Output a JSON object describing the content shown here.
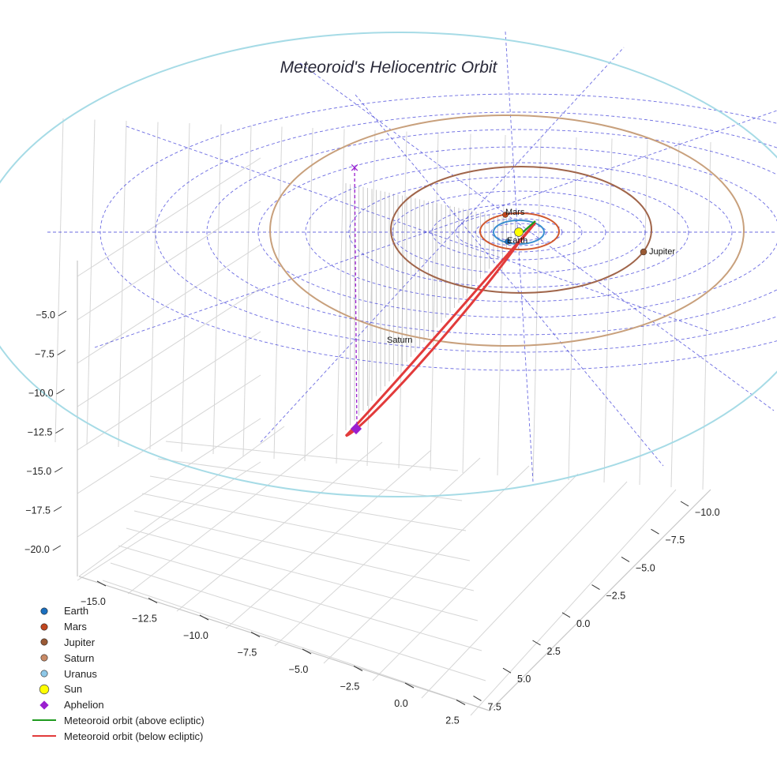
{
  "chart_data": {
    "type": "scatter",
    "title": "Meteoroid's Heliocentric Orbit",
    "projection": "3d",
    "x_ticks": [
      "−15.0",
      "−12.5",
      "−10.0",
      "−7.5",
      "−5.0",
      "−2.5",
      "0.0",
      "2.5"
    ],
    "y_ticks": [
      "−10.0",
      "−7.5",
      "−5.0",
      "−2.5",
      "0.0",
      "2.5",
      "5.0",
      "7.5"
    ],
    "z_ticks": [
      "−5.0",
      "−7.5",
      "−10.0",
      "−12.5",
      "−15.0",
      "−17.5",
      "−20.0"
    ],
    "orbit_colors": {
      "Earth": "#3a8fd0",
      "Mars": "#d0572e",
      "Jupiter": "#a0654a",
      "Saturn": "#c8a07c",
      "Uranus": "#a6dbe6",
      "meteoroid_above": "#1f9a1f",
      "meteoroid_below": "#e23b3b",
      "grid_rings": "#3a3ad8",
      "aphelion": "#9a1fcf"
    },
    "bodies": [
      {
        "name": "Earth",
        "color": "#1a6fbf",
        "marker": "circle"
      },
      {
        "name": "Mars",
        "color": "#c0461f",
        "marker": "circle"
      },
      {
        "name": "Jupiter",
        "color": "#9a5a35",
        "marker": "circle"
      },
      {
        "name": "Saturn",
        "color": "#c88a66",
        "marker": "circle"
      },
      {
        "name": "Uranus",
        "color": "#8ec8e8",
        "marker": "circle"
      },
      {
        "name": "Sun",
        "color": "#ffff00",
        "marker": "circle"
      },
      {
        "name": "Aphelion",
        "color": "#9a1fcf",
        "marker": "diamond"
      }
    ],
    "point_labels": [
      "Mars",
      "Earth",
      "Jupiter",
      "Saturn"
    ],
    "legend": [
      {
        "label": "Earth",
        "color": "#1a6fbf",
        "kind": "dot"
      },
      {
        "label": "Mars",
        "color": "#c0461f",
        "kind": "dot"
      },
      {
        "label": "Jupiter",
        "color": "#9a5a35",
        "kind": "dot"
      },
      {
        "label": "Saturn",
        "color": "#c88a66",
        "kind": "dot"
      },
      {
        "label": "Uranus",
        "color": "#8ec8e8",
        "kind": "dot"
      },
      {
        "label": "Sun",
        "color": "#ffff00",
        "kind": "bigdot"
      },
      {
        "label": "Aphelion",
        "color": "#9a1fcf",
        "kind": "diamond"
      },
      {
        "label": "Meteoroid orbit (above ecliptic)",
        "color": "#1f9a1f",
        "kind": "line"
      },
      {
        "label": "Meteoroid orbit (below ecliptic)",
        "color": "#e23b3b",
        "kind": "line"
      }
    ],
    "legend_placement": "bottom-left",
    "grid": true
  }
}
